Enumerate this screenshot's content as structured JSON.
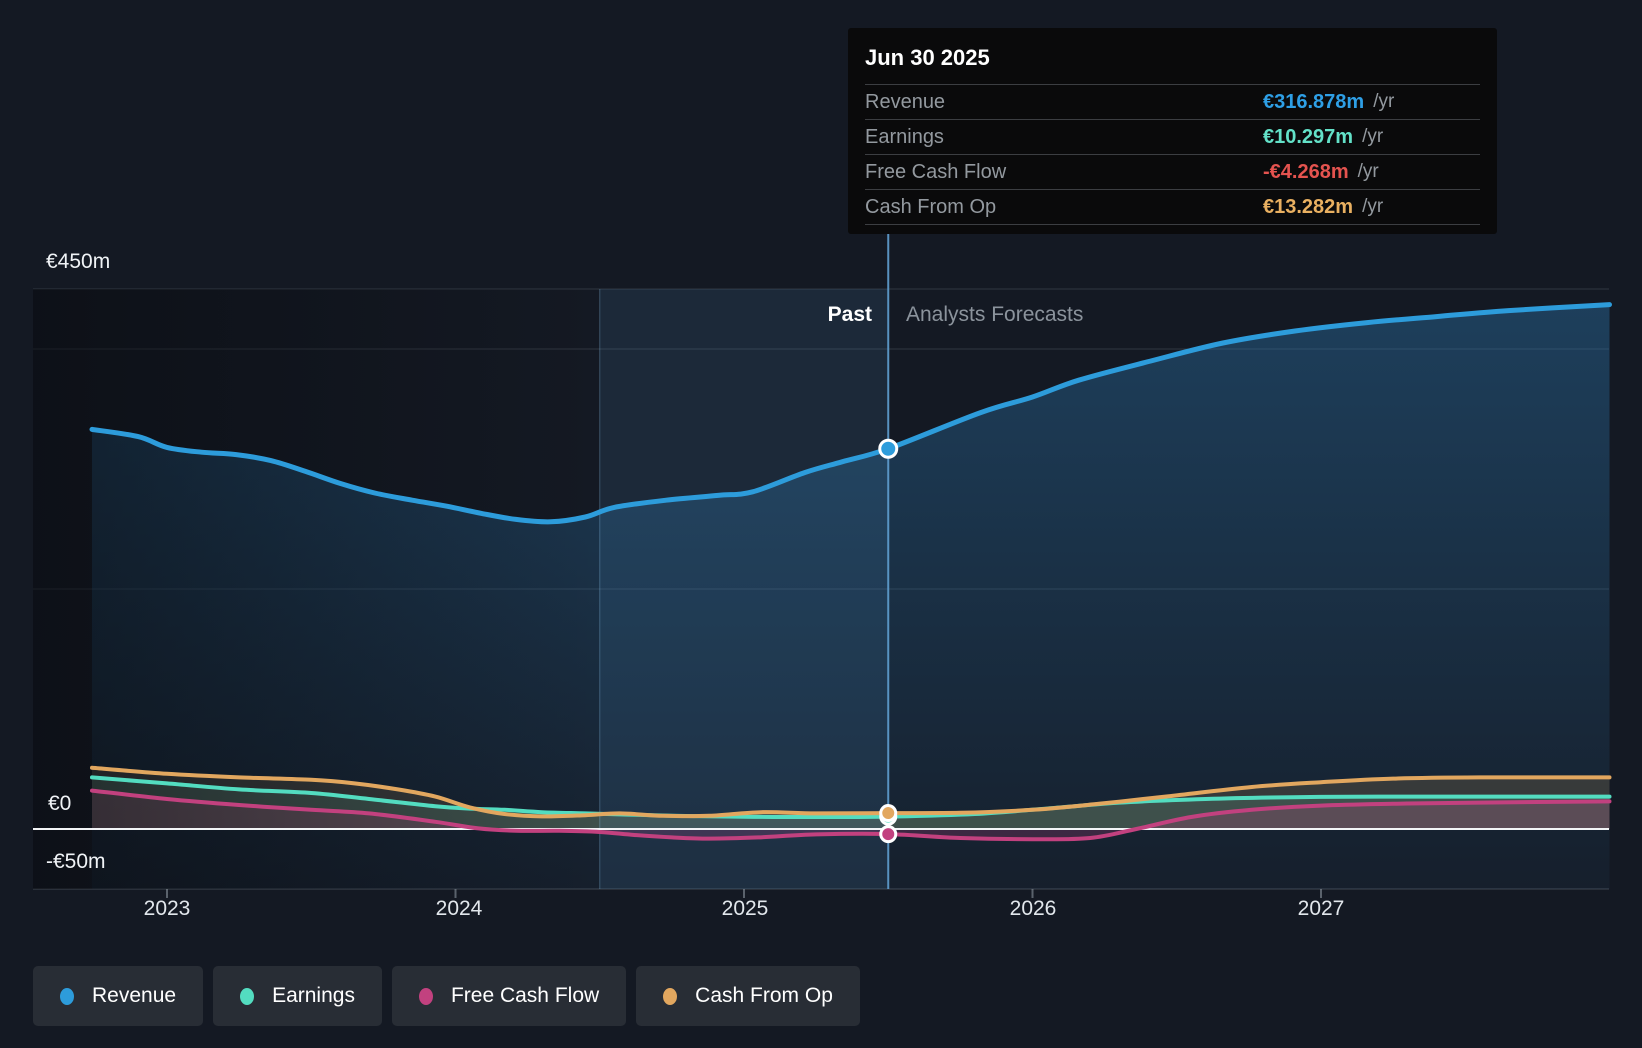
{
  "tooltip": {
    "date": "Jun 30 2025",
    "rows": [
      {
        "label": "Revenue",
        "value": "€316.878m",
        "unit": "/yr",
        "color": "#2e9fe6"
      },
      {
        "label": "Earnings",
        "value": "€10.297m",
        "unit": "/yr",
        "color": "#63e1c8"
      },
      {
        "label": "Free Cash Flow",
        "value": "-€4.268m",
        "unit": "/yr",
        "color": "#e4534f"
      },
      {
        "label": "Cash From Op",
        "value": "€13.282m",
        "unit": "/yr",
        "color": "#e9b061"
      }
    ]
  },
  "labels": {
    "past": "Past",
    "forecast": "Analysts Forecasts"
  },
  "legend": {
    "items": [
      {
        "label": "Revenue",
        "color": "#2d9cdb"
      },
      {
        "label": "Earnings",
        "color": "#53dcc0"
      },
      {
        "label": "Free Cash Flow",
        "color": "#c2417f"
      },
      {
        "label": "Cash From Op",
        "color": "#e2a75f"
      }
    ]
  },
  "chart_data": {
    "type": "line",
    "currency": "€",
    "unit": "m",
    "ylim": [
      -50,
      450
    ],
    "x_domain": [
      2022.74,
      2028.0
    ],
    "grid": true,
    "legend_position": "bottom-left",
    "y_ticks": [
      {
        "v": 450,
        "label": "€450m"
      },
      {
        "v": 0,
        "label": "€0"
      },
      {
        "v": -50,
        "label": "-€50m"
      }
    ],
    "y_gridlines": [
      450,
      400,
      200,
      -50
    ],
    "zero_line": 0,
    "x_ticks": [
      {
        "v": 2023,
        "label": "2023"
      },
      {
        "v": 2024,
        "label": "2024"
      },
      {
        "v": 2025,
        "label": "2025"
      },
      {
        "v": 2026,
        "label": "2026"
      },
      {
        "v": 2027,
        "label": "2027"
      }
    ],
    "divider_x": 2025.5,
    "divider_date": "Jun 30 2025",
    "highlight_band": [
      2024.5,
      2025.5
    ],
    "series": [
      {
        "name": "Revenue",
        "color": "#2d9cdb",
        "width": 5,
        "base": "plot_bottom",
        "fill": "gradient",
        "points": [
          [
            2022.74,
            333
          ],
          [
            2022.9,
            327
          ],
          [
            2023.0,
            318
          ],
          [
            2023.12,
            314
          ],
          [
            2023.24,
            312
          ],
          [
            2023.36,
            307
          ],
          [
            2023.48,
            298
          ],
          [
            2023.6,
            288
          ],
          [
            2023.72,
            280
          ],
          [
            2023.85,
            274
          ],
          [
            2023.97,
            269
          ],
          [
            2024.09,
            263
          ],
          [
            2024.21,
            258
          ],
          [
            2024.33,
            256
          ],
          [
            2024.45,
            260
          ],
          [
            2024.55,
            268
          ],
          [
            2024.73,
            274
          ],
          [
            2024.91,
            278
          ],
          [
            2025.03,
            281
          ],
          [
            2025.21,
            297
          ],
          [
            2025.34,
            306
          ],
          [
            2025.5,
            316.878
          ],
          [
            2025.82,
            347
          ],
          [
            2026.0,
            360
          ],
          [
            2026.16,
            374
          ],
          [
            2026.41,
            390
          ],
          [
            2026.66,
            405
          ],
          [
            2026.91,
            415
          ],
          [
            2027.16,
            422
          ],
          [
            2027.4,
            427
          ],
          [
            2027.65,
            432
          ],
          [
            2028.0,
            437
          ]
        ]
      },
      {
        "name": "Earnings",
        "color": "#53dcc0",
        "width": 4,
        "base": "zero",
        "fill": "flat",
        "points": [
          [
            2022.74,
            43
          ],
          [
            2023.0,
            38
          ],
          [
            2023.25,
            33
          ],
          [
            2023.5,
            30
          ],
          [
            2023.7,
            25
          ],
          [
            2023.93,
            19
          ],
          [
            2024.05,
            17
          ],
          [
            2024.17,
            16
          ],
          [
            2024.3,
            14
          ],
          [
            2024.45,
            13
          ],
          [
            2024.6,
            12
          ],
          [
            2024.75,
            11
          ],
          [
            2024.9,
            10.5
          ],
          [
            2025.1,
            10
          ],
          [
            2025.3,
            10
          ],
          [
            2025.5,
            10.297
          ],
          [
            2025.8,
            12.5
          ],
          [
            2026.1,
            18
          ],
          [
            2026.3,
            22
          ],
          [
            2026.6,
            25
          ],
          [
            2026.9,
            26.5
          ],
          [
            2027.2,
            27
          ],
          [
            2027.6,
            27
          ],
          [
            2028.0,
            27
          ]
        ]
      },
      {
        "name": "Cash From Op",
        "color": "#e2a75f",
        "width": 4,
        "base": "zero",
        "fill": "flat",
        "points": [
          [
            2022.74,
            51
          ],
          [
            2023.0,
            46
          ],
          [
            2023.25,
            43
          ],
          [
            2023.5,
            41
          ],
          [
            2023.65,
            38
          ],
          [
            2023.8,
            33
          ],
          [
            2023.93,
            27
          ],
          [
            2024.05,
            18
          ],
          [
            2024.17,
            12.5
          ],
          [
            2024.3,
            10.5
          ],
          [
            2024.45,
            11.5
          ],
          [
            2024.57,
            13
          ],
          [
            2024.72,
            11
          ],
          [
            2024.88,
            11
          ],
          [
            2025.06,
            14
          ],
          [
            2025.25,
            13
          ],
          [
            2025.5,
            13.282
          ],
          [
            2025.75,
            13.5
          ],
          [
            2026.0,
            16
          ],
          [
            2026.23,
            21
          ],
          [
            2026.46,
            27
          ],
          [
            2026.76,
            35
          ],
          [
            2027.0,
            39
          ],
          [
            2027.25,
            42
          ],
          [
            2027.55,
            43
          ],
          [
            2028.0,
            43
          ]
        ]
      },
      {
        "name": "Free Cash Flow",
        "color": "#c2417f",
        "width": 4,
        "base": "zero",
        "fill": "flat",
        "points": [
          [
            2022.74,
            32
          ],
          [
            2023.0,
            25
          ],
          [
            2023.25,
            20
          ],
          [
            2023.5,
            16
          ],
          [
            2023.7,
            13
          ],
          [
            2023.93,
            6
          ],
          [
            2024.08,
            0.5
          ],
          [
            2024.21,
            -1.5
          ],
          [
            2024.36,
            -1.5
          ],
          [
            2024.5,
            -2.5
          ],
          [
            2024.62,
            -5
          ],
          [
            2024.75,
            -7
          ],
          [
            2024.88,
            -8
          ],
          [
            2025.05,
            -7
          ],
          [
            2025.25,
            -4.5
          ],
          [
            2025.5,
            -4.268
          ],
          [
            2025.75,
            -7.5
          ],
          [
            2026.0,
            -8.5
          ],
          [
            2026.2,
            -7.5
          ],
          [
            2026.36,
            0
          ],
          [
            2026.55,
            10
          ],
          [
            2026.76,
            16
          ],
          [
            2027.0,
            19.5
          ],
          [
            2027.25,
            21
          ],
          [
            2027.55,
            22
          ],
          [
            2028.0,
            23
          ]
        ]
      }
    ],
    "markers": [
      {
        "series": "Earnings",
        "x": 2025.5,
        "y": 10.297,
        "color": "#53dcc0",
        "r": 7.5
      },
      {
        "series": "Cash From Op",
        "x": 2025.5,
        "y": 13.282,
        "color": "#e2a75f",
        "r": 7.5
      },
      {
        "series": "Free Cash Flow",
        "x": 2025.5,
        "y": -4.268,
        "color": "#c2417f",
        "r": 7.5
      },
      {
        "series": "Revenue",
        "x": 2025.5,
        "y": 316.878,
        "color": "#2d9cdb",
        "r": 8.5
      }
    ]
  }
}
